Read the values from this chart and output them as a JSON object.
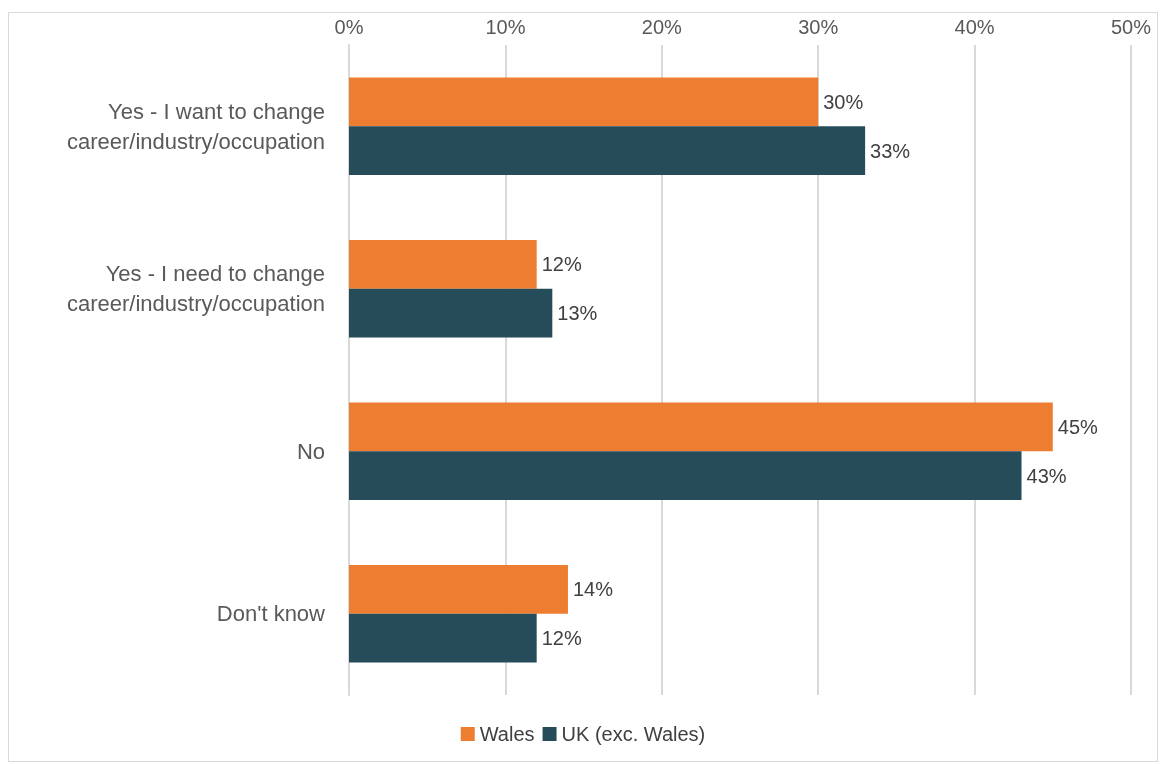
{
  "chart_data": {
    "type": "bar",
    "orientation": "horizontal",
    "categories": [
      "Yes - I want to change career/industry/occupation",
      "Yes - I need to change career/industry/occupation",
      "No",
      "Don't know"
    ],
    "series": [
      {
        "name": "Wales",
        "color": "#ed7d31",
        "values": [
          30,
          12,
          45,
          14
        ],
        "value_labels": [
          "30%",
          "12%",
          "45%",
          "14%"
        ]
      },
      {
        "name": "UK (exc. Wales)",
        "color": "#264c5a",
        "values": [
          33,
          13,
          43,
          12
        ],
        "value_labels": [
          "33%",
          "13%",
          "43%",
          "12%"
        ]
      }
    ],
    "xlim": [
      0,
      50
    ],
    "xticks": [
      {
        "value": 0,
        "label": "0%"
      },
      {
        "value": 10,
        "label": "10%"
      },
      {
        "value": 20,
        "label": "20%"
      },
      {
        "value": 30,
        "label": "30%"
      },
      {
        "value": 40,
        "label": "40%"
      },
      {
        "value": 50,
        "label": "50%"
      }
    ],
    "grid": "x",
    "legend": "bottom"
  }
}
